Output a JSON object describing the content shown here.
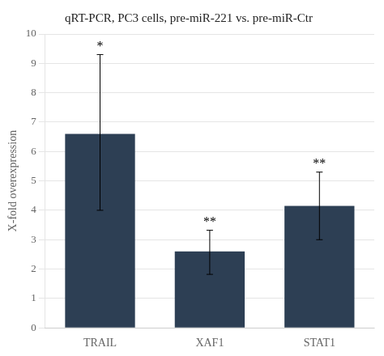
{
  "chart_data": {
    "type": "bar",
    "title": "qRT-PCR, PC3 cells, pre-miR-221 vs. pre-miR-Ctr",
    "ylabel": "X-fold overexpression",
    "categories": [
      "TRAIL",
      "XAF1",
      "STAT1"
    ],
    "values": [
      6.6,
      2.6,
      4.15
    ],
    "errors_upper": [
      2.7,
      0.72,
      1.15
    ],
    "errors_lower": [
      2.6,
      0.78,
      1.15
    ],
    "annotations": [
      "*",
      "**",
      "**"
    ],
    "color": "#2d3f54",
    "ylim": [
      0,
      10
    ],
    "yticks": [
      0,
      1,
      2,
      3,
      4,
      5,
      6,
      7,
      8,
      9,
      10
    ],
    "grid": true
  }
}
